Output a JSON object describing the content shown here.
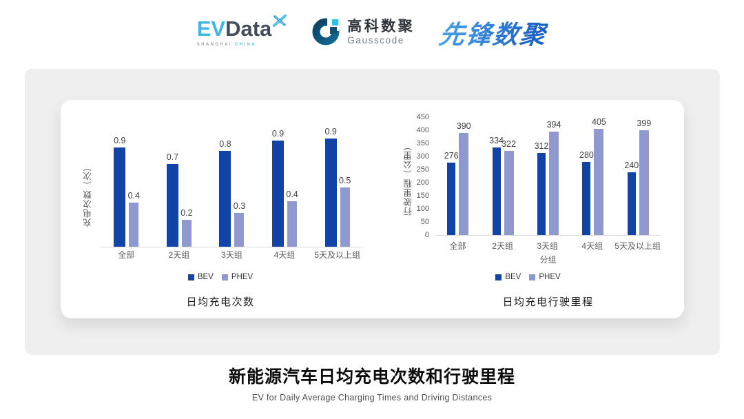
{
  "header": {
    "evdata": {
      "ev": "EV",
      "data": "Data",
      "mark_icon": "x-leaf-icon",
      "sub_left": "SHANGHAI",
      "sub_right": "CHINA"
    },
    "gausscode": {
      "icon": "g-mark-icon",
      "cn": "高科数聚",
      "en": "Gausscode"
    },
    "pioneer": {
      "text": "先锋数聚"
    }
  },
  "colors": {
    "bev": "#1243A6",
    "phev": "#8F99D0",
    "panel_bg": "#EFEFEF",
    "axis_line": "#D9D9D9",
    "evdata_blue": "#3EB6E8",
    "evdata_dark": "#434E5A",
    "gausscode_dark_blue": "#0F5078",
    "gausscode_cyan": "#2BC3E4",
    "pioneer_blue": "#2E7FD6"
  },
  "chart_data": [
    {
      "type": "bar",
      "title": "日均充电次数",
      "ylabel": "充电次数（次）",
      "xlabel": "",
      "categories": [
        "全部",
        "2天组",
        "3天组",
        "4天组",
        "5天及以上组"
      ],
      "series": [
        {
          "name": "BEV",
          "color": "#1243A6",
          "values": [
            0.9,
            0.7,
            0.8,
            0.9,
            0.9
          ],
          "values_precise": [
            0.85,
            0.71,
            0.82,
            0.91,
            0.93
          ]
        },
        {
          "name": "PHEV",
          "color": "#8F99D0",
          "values": [
            0.4,
            0.2,
            0.3,
            0.4,
            0.5
          ],
          "values_precise": [
            0.38,
            0.23,
            0.29,
            0.39,
            0.51
          ]
        }
      ],
      "ylim": [
        0,
        1.0
      ],
      "y_axis_ticks": false,
      "grid": false,
      "data_labels": true,
      "legend_position": "bottom"
    },
    {
      "type": "bar",
      "title": "日均充电行驶里程",
      "ylabel": "行驶里程（公里）",
      "xlabel": "分组",
      "categories": [
        "全部",
        "2天组",
        "3天组",
        "4天组",
        "5天及以上组"
      ],
      "series": [
        {
          "name": "BEV",
          "color": "#1243A6",
          "values": [
            276,
            334,
            312,
            280,
            240
          ]
        },
        {
          "name": "PHEV",
          "color": "#8F99D0",
          "values": [
            390,
            322,
            394,
            405,
            399
          ]
        }
      ],
      "ylim": [
        0,
        450
      ],
      "ytick_step": 50,
      "y_axis_ticks": true,
      "grid": false,
      "data_labels": true,
      "legend_position": "bottom"
    }
  ],
  "footer": {
    "title": "新能源汽车日均充电次数和行驶里程",
    "subtitle": "EV for Daily Average Charging Times and Driving Distances"
  }
}
